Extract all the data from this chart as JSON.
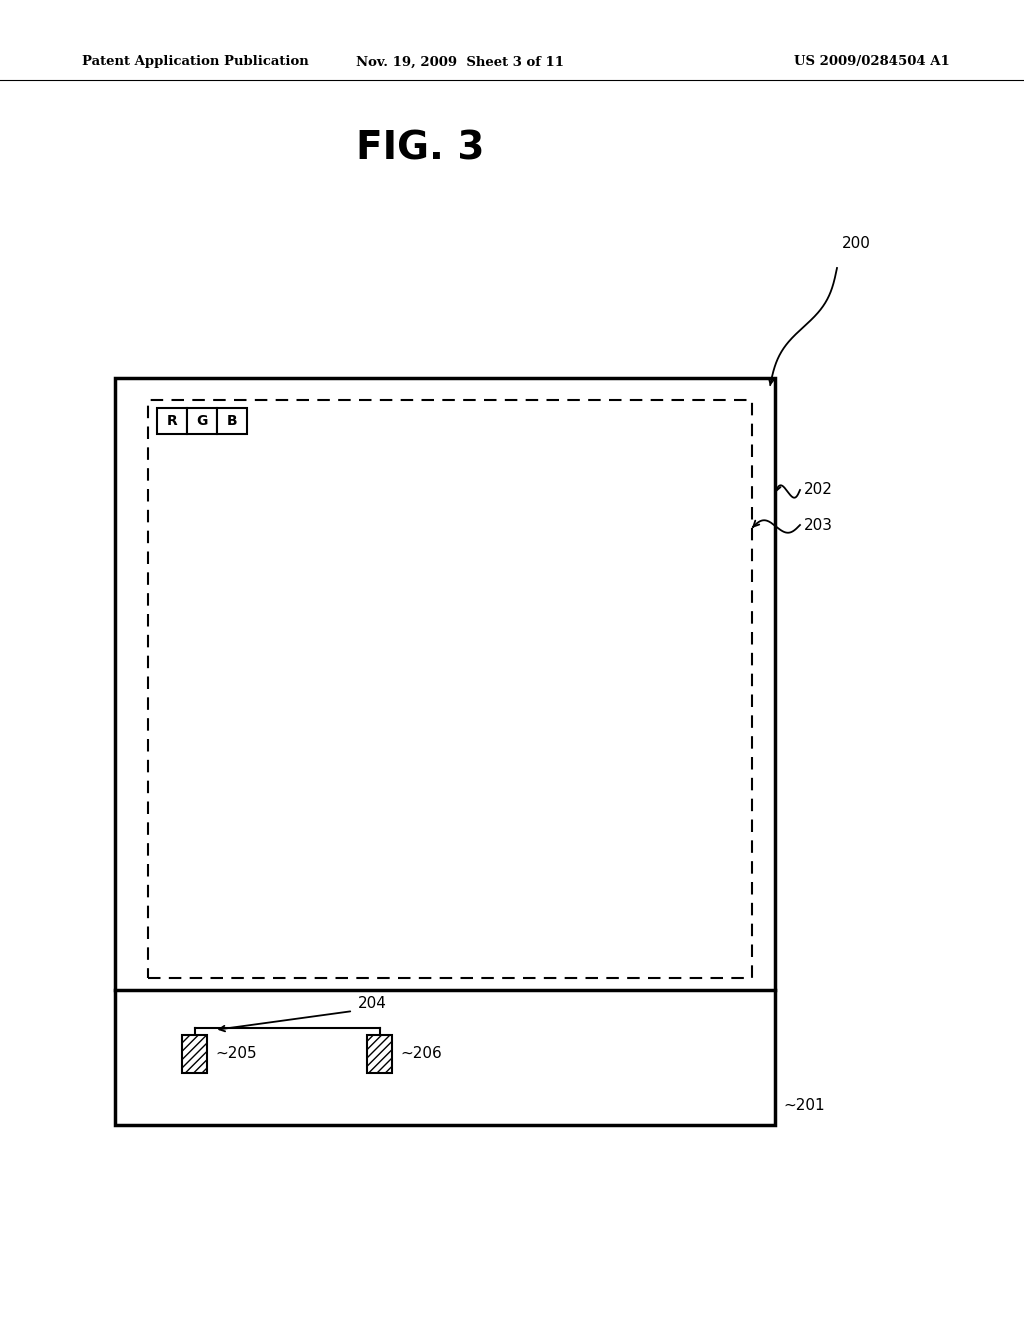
{
  "title": "FIG. 3",
  "header_left": "Patent Application Publication",
  "header_mid": "Nov. 19, 2009  Sheet 3 of 11",
  "header_right": "US 2009/0284504 A1",
  "bg_color": "#ffffff",
  "label_200": "200",
  "label_201": "201",
  "label_202": "202",
  "label_203": "203",
  "label_204": "204",
  "label_205": "205",
  "label_206": "206"
}
